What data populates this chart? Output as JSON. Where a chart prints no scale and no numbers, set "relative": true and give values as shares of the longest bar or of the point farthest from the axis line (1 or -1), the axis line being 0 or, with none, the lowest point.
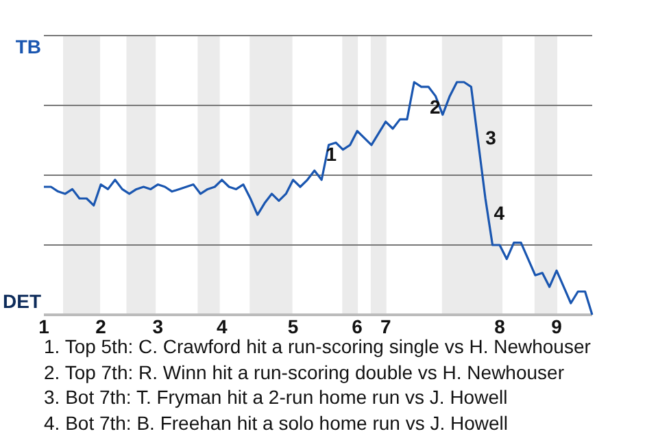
{
  "chart_data": {
    "type": "line",
    "relative": true,
    "categories": [
      "1",
      null,
      null,
      null,
      null,
      null,
      null,
      null,
      "2",
      null,
      null,
      null,
      null,
      null,
      null,
      null,
      "3",
      null,
      null,
      null,
      null,
      null,
      null,
      null,
      null,
      "4",
      null,
      null,
      null,
      null,
      null,
      null,
      null,
      null,
      null,
      "5",
      null,
      null,
      null,
      null,
      null,
      null,
      null,
      null,
      "6",
      null,
      null,
      null,
      "7",
      null,
      null,
      null,
      null,
      null,
      null,
      null,
      null,
      null,
      null,
      null,
      null,
      null,
      null,
      null,
      "8",
      null,
      null,
      null,
      null,
      null,
      null,
      null,
      "9",
      null,
      null,
      null,
      null,
      null
    ],
    "series": [
      {
        "color": "#1a56b0",
        "values": [
          0.55,
          0.55,
          0.53,
          0.52,
          0.54,
          0.5,
          0.5,
          0.47,
          0.56,
          0.54,
          0.58,
          0.54,
          0.52,
          0.54,
          0.55,
          0.54,
          0.56,
          0.55,
          0.53,
          0.54,
          0.55,
          0.56,
          0.52,
          0.54,
          0.55,
          0.58,
          0.55,
          0.54,
          0.56,
          0.5,
          0.43,
          0.48,
          0.52,
          0.49,
          0.52,
          0.58,
          0.55,
          0.58,
          0.62,
          0.58,
          0.73,
          0.74,
          0.71,
          0.73,
          0.79,
          0.76,
          0.73,
          0.78,
          0.83,
          0.8,
          0.84,
          0.84,
          1,
          0.98,
          0.98,
          0.94,
          0.86,
          0.94,
          1,
          1,
          0.98,
          0.74,
          0.5,
          0.3,
          0.3,
          0.24,
          0.31,
          0.31,
          0.24,
          0.17,
          0.18,
          0.12,
          0.19,
          0.12,
          0.05,
          0.1,
          0.1,
          0
        ]
      }
    ],
    "marker": "none",
    "legend": false,
    "annotations": [
      "TB",
      "DET",
      "1",
      "2",
      "3",
      "4",
      "1. Top 5th: C. Crawford hit a run-scoring single vs H. Newhouser",
      "2. Top 7th: R. Winn hit a run-scoring double vs H. Newhouser",
      "3. Bot 7th: T. Fryman hit a 2-run home run vs J. Howell",
      "4. Bot 7th: B. Freehan hit a solo home run vs J. Howell"
    ]
  }
}
